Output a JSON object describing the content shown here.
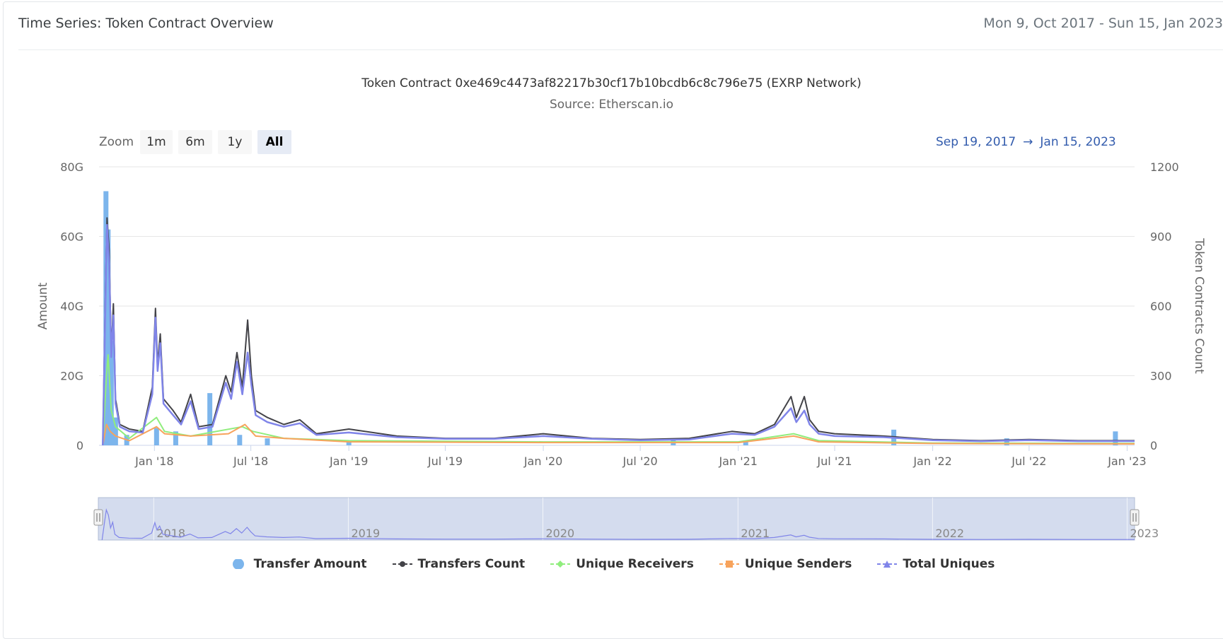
{
  "header": {
    "title": "Time Series: Token Contract Overview",
    "range": "Mon 9, Oct 2017 - Sun 15, Jan 2023"
  },
  "zoom": {
    "label": "Zoom",
    "buttons": [
      "1m",
      "6m",
      "1y",
      "All"
    ],
    "active": "All"
  },
  "range_selector": {
    "from": "Sep 19, 2017",
    "arrow": "→",
    "to": "Jan 15, 2023"
  },
  "colors": {
    "transfer_amount": "#7cb5ec",
    "transfers_count": "#434348",
    "unique_receivers": "#90ed7d",
    "unique_senders": "#f7a35c",
    "total_uniques": "#8085e9",
    "navigator_fill": "#ccd6eb",
    "range_text": "#335cad"
  },
  "chart_data": {
    "type": "line",
    "title": "Token Contract 0xe469c4473af82217b30cf17b10bcdb6c8c796e75 (EXRP Network)",
    "subtitle": "Source: Etherscan.io",
    "x_range": [
      "2017-09-19",
      "2023-01-15"
    ],
    "x_ticks": [
      {
        "date": "2018-01-01",
        "label": "Jan '18"
      },
      {
        "date": "2018-07-01",
        "label": "Jul '18"
      },
      {
        "date": "2019-01-01",
        "label": "Jan '19"
      },
      {
        "date": "2019-07-01",
        "label": "Jul '19"
      },
      {
        "date": "2020-01-01",
        "label": "Jan '20"
      },
      {
        "date": "2020-07-01",
        "label": "Jul '20"
      },
      {
        "date": "2021-01-01",
        "label": "Jan '21"
      },
      {
        "date": "2021-07-01",
        "label": "Jul '21"
      },
      {
        "date": "2022-01-01",
        "label": "Jan '22"
      },
      {
        "date": "2022-07-01",
        "label": "Jul '22"
      },
      {
        "date": "2023-01-01",
        "label": "Jan '23"
      }
    ],
    "y_left": {
      "label": "Amount",
      "ticks": [
        "0",
        "20G",
        "40G",
        "60G",
        "80G"
      ],
      "range": [
        0,
        80000000000
      ]
    },
    "y_right": {
      "label": "Token Contracts Count",
      "ticks": [
        "0",
        "300",
        "600",
        "900",
        "1200"
      ],
      "range": [
        0,
        1200
      ]
    },
    "navigator_labels": [
      {
        "date": "2018-01-01",
        "label": "2018"
      },
      {
        "date": "2019-01-01",
        "label": "2019"
      },
      {
        "date": "2020-01-01",
        "label": "2020"
      },
      {
        "date": "2021-01-01",
        "label": "2021"
      },
      {
        "date": "2022-01-01",
        "label": "2022"
      },
      {
        "date": "2023-01-01",
        "label": "2023"
      }
    ],
    "series": [
      {
        "name": "Transfer Amount",
        "type": "column",
        "axis": "left",
        "points": [
          [
            "2017-10-02",
            73000000000
          ],
          [
            "2017-10-06",
            62000000000
          ],
          [
            "2017-10-12",
            30000000000
          ],
          [
            "2017-10-20",
            8000000000
          ],
          [
            "2017-11-10",
            3000000000
          ],
          [
            "2018-01-05",
            5000000000
          ],
          [
            "2018-02-10",
            4000000000
          ],
          [
            "2018-04-15",
            15000000000
          ],
          [
            "2018-06-10",
            3000000000
          ],
          [
            "2018-08-01",
            2000000000
          ],
          [
            "2019-01-01",
            1000000000
          ],
          [
            "2020-09-01",
            1500000000
          ],
          [
            "2021-01-15",
            1000000000
          ],
          [
            "2021-10-20",
            4500000000
          ],
          [
            "2022-05-20",
            2000000000
          ],
          [
            "2022-12-10",
            4000000000
          ]
        ]
      },
      {
        "name": "Transfers Count",
        "type": "line",
        "axis": "right",
        "points": [
          [
            "2017-09-26",
            0
          ],
          [
            "2017-10-01",
            650
          ],
          [
            "2017-10-04",
            980
          ],
          [
            "2017-10-08",
            840
          ],
          [
            "2017-10-12",
            400
          ],
          [
            "2017-10-16",
            610
          ],
          [
            "2017-10-20",
            200
          ],
          [
            "2017-10-28",
            90
          ],
          [
            "2017-11-15",
            70
          ],
          [
            "2017-12-10",
            60
          ],
          [
            "2017-12-28",
            250
          ],
          [
            "2018-01-03",
            590
          ],
          [
            "2018-01-07",
            350
          ],
          [
            "2018-01-12",
            480
          ],
          [
            "2018-01-18",
            200
          ],
          [
            "2018-02-05",
            150
          ],
          [
            "2018-02-20",
            100
          ],
          [
            "2018-03-10",
            220
          ],
          [
            "2018-03-25",
            80
          ],
          [
            "2018-04-20",
            90
          ],
          [
            "2018-05-15",
            300
          ],
          [
            "2018-05-25",
            230
          ],
          [
            "2018-06-05",
            400
          ],
          [
            "2018-06-15",
            250
          ],
          [
            "2018-06-25",
            540
          ],
          [
            "2018-07-02",
            300
          ],
          [
            "2018-07-10",
            150
          ],
          [
            "2018-08-01",
            120
          ],
          [
            "2018-09-01",
            90
          ],
          [
            "2018-10-01",
            110
          ],
          [
            "2018-11-01",
            50
          ],
          [
            "2019-01-01",
            70
          ],
          [
            "2019-04-01",
            40
          ],
          [
            "2019-07-01",
            30
          ],
          [
            "2019-10-01",
            30
          ],
          [
            "2020-01-01",
            50
          ],
          [
            "2020-04-01",
            30
          ],
          [
            "2020-07-01",
            25
          ],
          [
            "2020-10-01",
            30
          ],
          [
            "2020-12-20",
            60
          ],
          [
            "2021-02-01",
            50
          ],
          [
            "2021-03-10",
            90
          ],
          [
            "2021-04-10",
            210
          ],
          [
            "2021-04-20",
            120
          ],
          [
            "2021-05-05",
            210
          ],
          [
            "2021-05-15",
            110
          ],
          [
            "2021-06-01",
            60
          ],
          [
            "2021-07-01",
            50
          ],
          [
            "2021-10-01",
            40
          ],
          [
            "2022-01-01",
            25
          ],
          [
            "2022-04-01",
            20
          ],
          [
            "2022-07-01",
            25
          ],
          [
            "2022-10-01",
            20
          ],
          [
            "2023-01-15",
            20
          ]
        ]
      },
      {
        "name": "Unique Receivers",
        "type": "line",
        "axis": "right",
        "points": [
          [
            "2017-09-26",
            0
          ],
          [
            "2017-10-03",
            300
          ],
          [
            "2017-10-06",
            390
          ],
          [
            "2017-10-12",
            150
          ],
          [
            "2017-10-20",
            80
          ],
          [
            "2017-11-15",
            30
          ],
          [
            "2018-01-05",
            120
          ],
          [
            "2018-01-20",
            60
          ],
          [
            "2018-03-10",
            40
          ],
          [
            "2018-06-15",
            80
          ],
          [
            "2018-07-05",
            60
          ],
          [
            "2018-09-01",
            30
          ],
          [
            "2019-01-01",
            20
          ],
          [
            "2020-01-01",
            15
          ],
          [
            "2021-01-01",
            15
          ],
          [
            "2021-04-15",
            50
          ],
          [
            "2021-06-01",
            20
          ],
          [
            "2022-01-01",
            10
          ],
          [
            "2023-01-15",
            8
          ]
        ]
      },
      {
        "name": "Unique Senders",
        "type": "line",
        "axis": "right",
        "points": [
          [
            "2017-09-26",
            0
          ],
          [
            "2017-10-03",
            90
          ],
          [
            "2017-10-10",
            60
          ],
          [
            "2017-10-20",
            40
          ],
          [
            "2017-11-15",
            20
          ],
          [
            "2018-01-05",
            80
          ],
          [
            "2018-01-20",
            50
          ],
          [
            "2018-03-10",
            40
          ],
          [
            "2018-05-20",
            50
          ],
          [
            "2018-06-20",
            90
          ],
          [
            "2018-07-10",
            40
          ],
          [
            "2018-09-01",
            30
          ],
          [
            "2019-01-01",
            15
          ],
          [
            "2020-01-01",
            12
          ],
          [
            "2021-01-01",
            12
          ],
          [
            "2021-04-15",
            40
          ],
          [
            "2021-06-01",
            15
          ],
          [
            "2022-01-01",
            8
          ],
          [
            "2023-01-15",
            6
          ]
        ]
      },
      {
        "name": "Total Uniques",
        "type": "line",
        "axis": "right",
        "points": [
          [
            "2017-09-26",
            0
          ],
          [
            "2017-10-01",
            600
          ],
          [
            "2017-10-04",
            950
          ],
          [
            "2017-10-08",
            780
          ],
          [
            "2017-10-12",
            380
          ],
          [
            "2017-10-16",
            560
          ],
          [
            "2017-10-20",
            180
          ],
          [
            "2017-10-28",
            80
          ],
          [
            "2017-11-15",
            60
          ],
          [
            "2017-12-10",
            55
          ],
          [
            "2017-12-28",
            220
          ],
          [
            "2018-01-03",
            550
          ],
          [
            "2018-01-07",
            320
          ],
          [
            "2018-01-12",
            440
          ],
          [
            "2018-01-18",
            180
          ],
          [
            "2018-02-05",
            130
          ],
          [
            "2018-02-20",
            90
          ],
          [
            "2018-03-10",
            190
          ],
          [
            "2018-03-25",
            70
          ],
          [
            "2018-04-20",
            80
          ],
          [
            "2018-05-15",
            270
          ],
          [
            "2018-05-25",
            200
          ],
          [
            "2018-06-05",
            360
          ],
          [
            "2018-06-15",
            220
          ],
          [
            "2018-06-25",
            400
          ],
          [
            "2018-07-02",
            260
          ],
          [
            "2018-07-10",
            130
          ],
          [
            "2018-08-01",
            100
          ],
          [
            "2018-09-01",
            80
          ],
          [
            "2018-10-01",
            95
          ],
          [
            "2018-11-01",
            45
          ],
          [
            "2019-01-01",
            55
          ],
          [
            "2019-04-01",
            35
          ],
          [
            "2019-07-01",
            28
          ],
          [
            "2019-10-01",
            28
          ],
          [
            "2020-01-01",
            40
          ],
          [
            "2020-04-01",
            28
          ],
          [
            "2020-07-01",
            22
          ],
          [
            "2020-10-01",
            25
          ],
          [
            "2020-12-20",
            50
          ],
          [
            "2021-02-01",
            45
          ],
          [
            "2021-03-10",
            80
          ],
          [
            "2021-04-10",
            160
          ],
          [
            "2021-04-20",
            100
          ],
          [
            "2021-05-05",
            150
          ],
          [
            "2021-05-15",
            90
          ],
          [
            "2021-06-01",
            50
          ],
          [
            "2021-07-01",
            40
          ],
          [
            "2021-10-01",
            35
          ],
          [
            "2022-01-01",
            22
          ],
          [
            "2022-04-01",
            18
          ],
          [
            "2022-07-01",
            22
          ],
          [
            "2022-10-01",
            18
          ],
          [
            "2023-01-15",
            18
          ]
        ]
      }
    ]
  }
}
